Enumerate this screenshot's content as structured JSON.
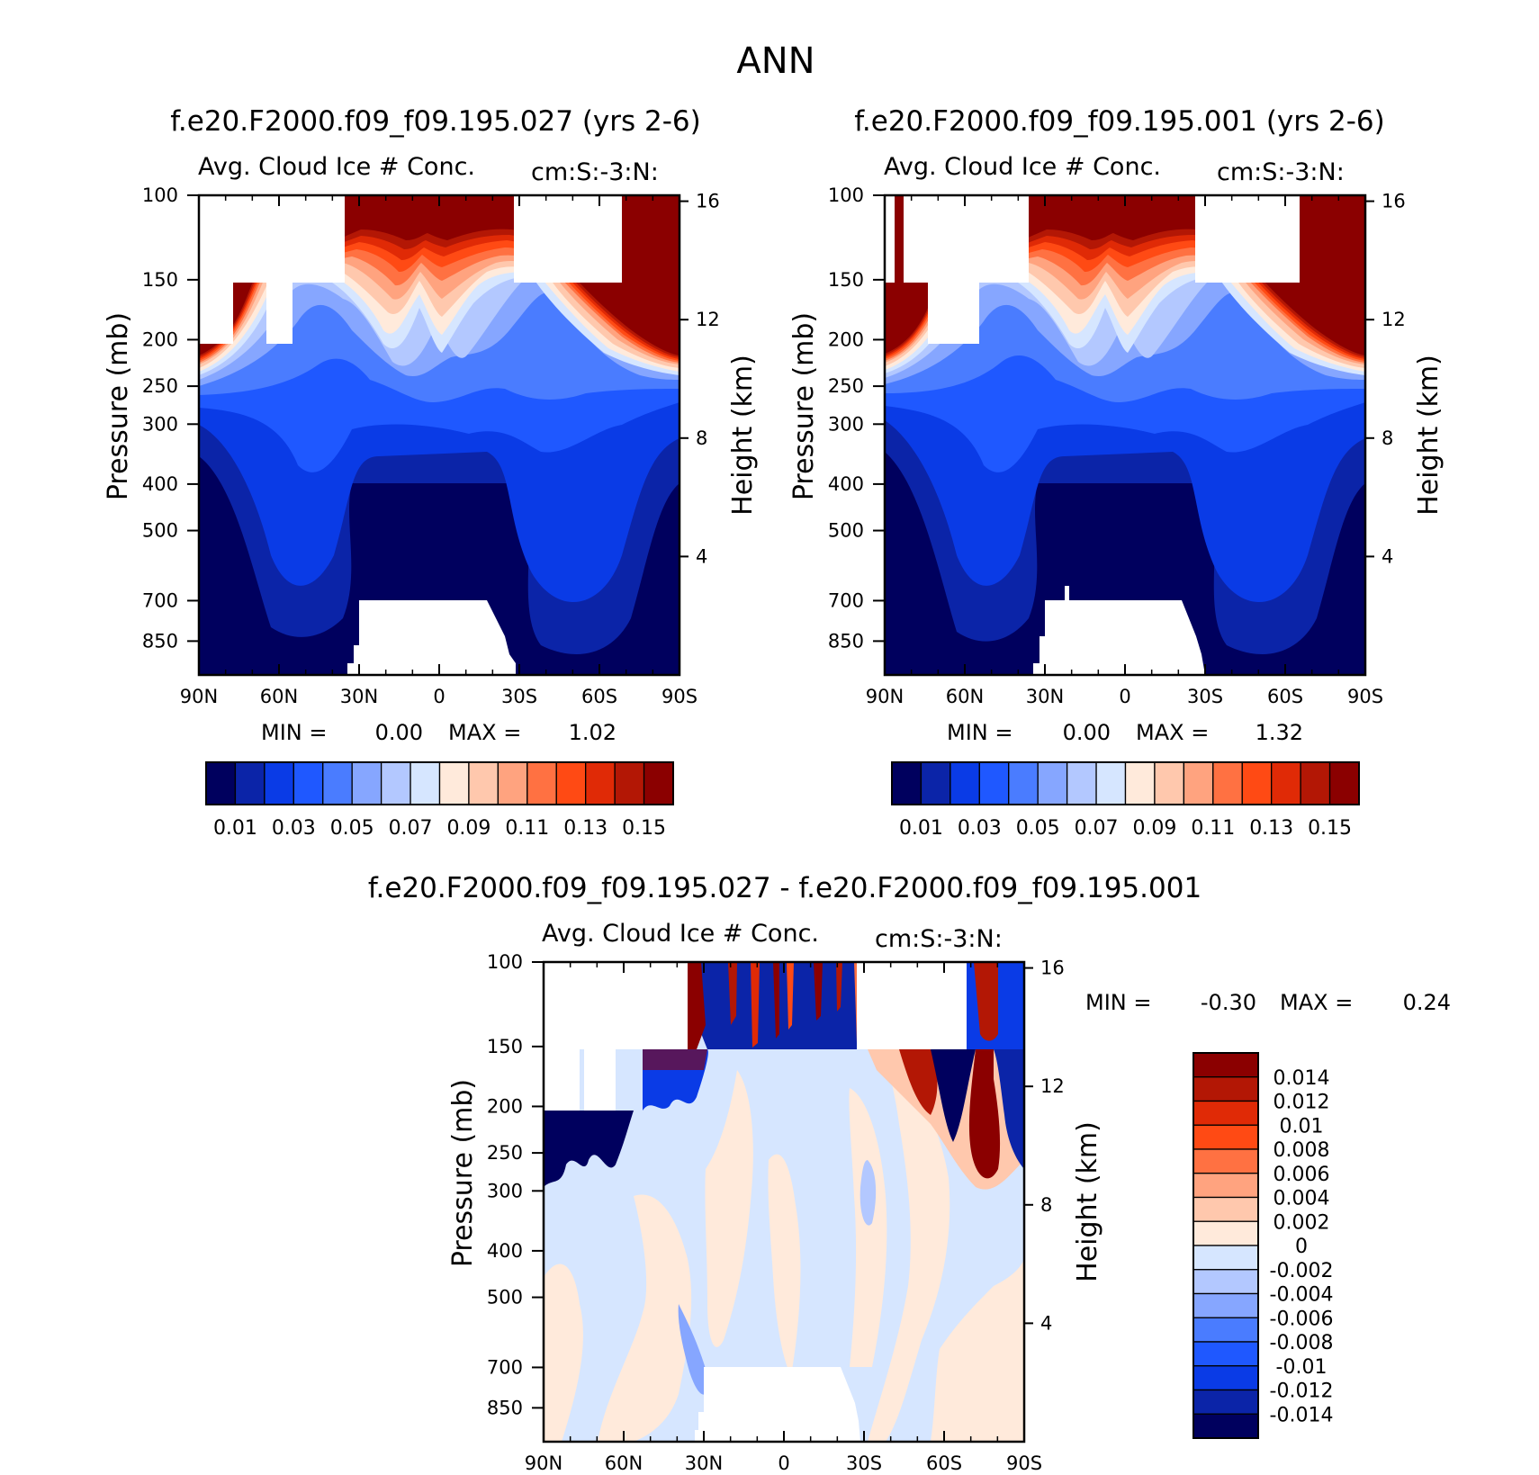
{
  "figure_title": "ANN",
  "chart_data": [
    {
      "type": "contour",
      "id": "panel-test",
      "title": "f.e20.F2000.f09_f09.195.027 (yrs 2-6)",
      "subtitle_left": "Avg. Cloud Ice # Conc.",
      "subtitle_right": "cm:S:-3:N:",
      "xlabel": "",
      "ylabel": "Pressure (mb)",
      "ylabel_right": "Height (km)",
      "xticks": [
        "90N",
        "60N",
        "30N",
        "0",
        "30S",
        "60S",
        "90S"
      ],
      "yticks": [
        "100",
        "150",
        "200",
        "250",
        "300",
        "400",
        "500",
        "700",
        "850"
      ],
      "yticks_right": [
        "16",
        "12",
        "8",
        "4"
      ],
      "min_label": "MIN =",
      "min_value": "0.00",
      "max_label": "MAX =",
      "max_value": "1.02",
      "levels": [
        "0.01",
        "0.03",
        "0.05",
        "0.07",
        "0.09",
        "0.11",
        "0.13",
        "0.15"
      ]
    },
    {
      "type": "contour",
      "id": "panel-control",
      "title": "f.e20.F2000.f09_f09.195.001 (yrs 2-6)",
      "subtitle_left": "Avg. Cloud Ice # Conc.",
      "subtitle_right": "cm:S:-3:N:",
      "xlabel": "",
      "ylabel": "Pressure (mb)",
      "ylabel_right": "Height (km)",
      "xticks": [
        "90N",
        "60N",
        "30N",
        "0",
        "30S",
        "60S",
        "90S"
      ],
      "yticks": [
        "100",
        "150",
        "200",
        "250",
        "300",
        "400",
        "500",
        "700",
        "850"
      ],
      "yticks_right": [
        "16",
        "12",
        "8",
        "4"
      ],
      "min_label": "MIN =",
      "min_value": "0.00",
      "max_label": "MAX =",
      "max_value": "1.32",
      "levels": [
        "0.01",
        "0.03",
        "0.05",
        "0.07",
        "0.09",
        "0.11",
        "0.13",
        "0.15"
      ]
    },
    {
      "type": "contour",
      "id": "panel-diff",
      "title": "f.e20.F2000.f09_f09.195.027 - f.e20.F2000.f09_f09.195.001",
      "subtitle_left": "Avg. Cloud Ice # Conc.",
      "subtitle_right": "cm:S:-3:N:",
      "xlabel": "",
      "ylabel": "Pressure (mb)",
      "ylabel_right": "Height (km)",
      "xticks": [
        "90N",
        "60N",
        "30N",
        "0",
        "30S",
        "60S",
        "90S"
      ],
      "yticks": [
        "100",
        "150",
        "200",
        "250",
        "300",
        "400",
        "500",
        "700",
        "850"
      ],
      "yticks_right": [
        "16",
        "12",
        "8",
        "4"
      ],
      "min_label": "MIN =",
      "min_value": "-0.30",
      "max_label": "MAX =",
      "max_value": "0.24",
      "levels": [
        "0.014",
        "0.012",
        "0.01",
        "0.008",
        "0.006",
        "0.004",
        "0.002",
        "0",
        "-0.002",
        "-0.004",
        "-0.006",
        "-0.008",
        "-0.01",
        "-0.012",
        "-0.014"
      ]
    }
  ],
  "colors": {
    "scale_abs": [
      "#00005e",
      "#0b24a8",
      "#0a3be6",
      "#1f58ff",
      "#4a7cff",
      "#86a6ff",
      "#b3c8ff",
      "#d6e6ff",
      "#ffeadb",
      "#ffc8ad",
      "#ffa37f",
      "#ff7142",
      "#ff4a14",
      "#e02a06",
      "#b31705",
      "#8b0000"
    ],
    "scale_diff": [
      "#8b0000",
      "#b31705",
      "#e02a06",
      "#ff4a14",
      "#ff7142",
      "#ffa37f",
      "#ffc8ad",
      "#ffeadb",
      "#d6e6ff",
      "#b3c8ff",
      "#86a6ff",
      "#4a7cff",
      "#1f58ff",
      "#0a3be6",
      "#0b24a8",
      "#00005e"
    ]
  }
}
